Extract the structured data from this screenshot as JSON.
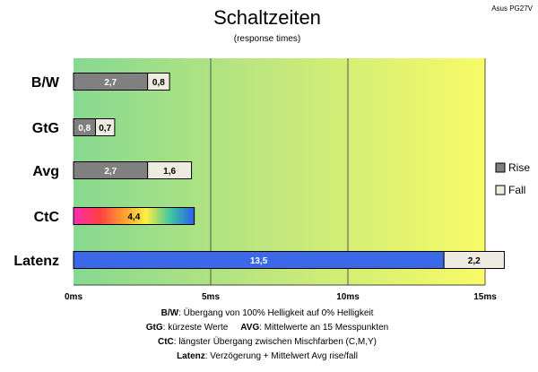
{
  "chart_data": {
    "type": "bar",
    "orientation": "horizontal",
    "stacked": true,
    "title": "Schaltzeiten",
    "subtitle": "(response times)",
    "corner_label": "Asus PG27V",
    "categories": [
      "B/W",
      "GtG",
      "Avg",
      "CtC",
      "Latenz"
    ],
    "series": [
      {
        "name": "Rise",
        "values": [
          2.7,
          0.8,
          2.7,
          4.4,
          13.5
        ],
        "labels": [
          "2,7",
          "0,8",
          "2,7",
          "4,4",
          "13,5"
        ],
        "color": "#808080"
      },
      {
        "name": "Fall",
        "values": [
          0.8,
          0.7,
          1.6,
          null,
          2.2
        ],
        "labels": [
          "0,8",
          "0,7",
          "1,6",
          "",
          "2,2"
        ],
        "color": "#eeece1"
      }
    ],
    "special_bar_colors": {
      "CtC": "rainbow",
      "Latenz": "#3a68e8"
    },
    "xlim": [
      0,
      15
    ],
    "x_ticks": [
      0,
      5,
      10,
      15
    ],
    "x_tick_labels": [
      "0ms",
      "5ms",
      "10ms",
      "15ms"
    ],
    "grid": true,
    "legend_position": "right",
    "background_gradient": [
      "#86d990",
      "#f5fa66"
    ],
    "notes": [
      {
        "term": "B/W",
        "text": ":  Übergang von 100% Helligkeit auf 0% Helligkeit"
      },
      {
        "term": "GtG",
        "text": ": kürzeste  Werte",
        "term2": "AVG",
        "text2": ": Mittelwerte  an 15 Messpunkten"
      },
      {
        "term": "CtC",
        "text": ": längster Übergang  zwischen Mischfarben (C,M,Y)"
      },
      {
        "term": "Latenz",
        "text": ": Verzögerung  + Mittelwert Avg rise/fall"
      }
    ]
  }
}
